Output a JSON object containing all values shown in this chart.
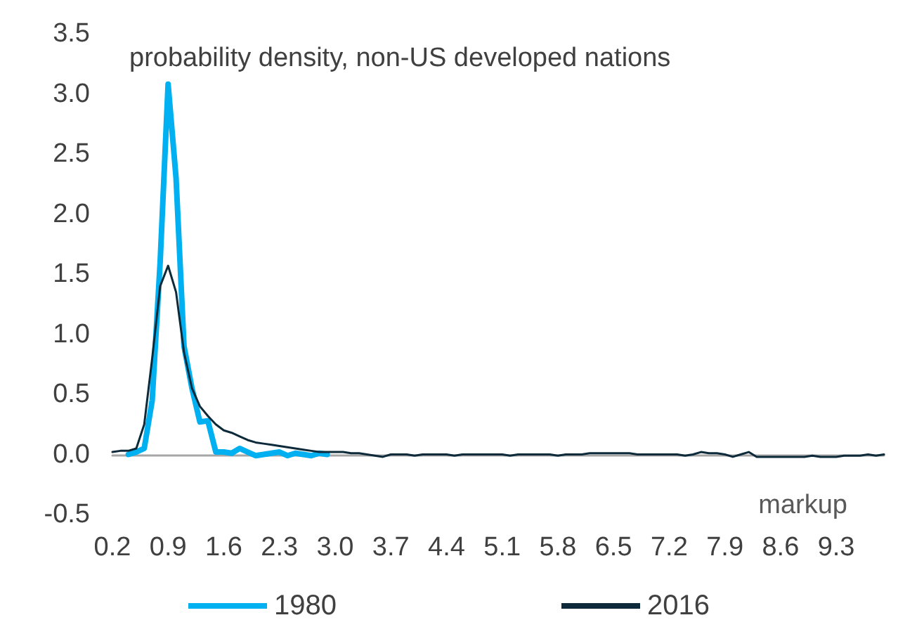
{
  "chart_data": {
    "type": "line",
    "ylabel": "probability density, non-US developed nations",
    "xlabel": "markup",
    "categories": [
      "0.2",
      null,
      null,
      null,
      null,
      null,
      null,
      "0.9",
      null,
      null,
      null,
      null,
      null,
      null,
      "1.6",
      null,
      null,
      null,
      null,
      null,
      null,
      "2.3",
      null,
      null,
      null,
      null,
      null,
      null,
      "3.0",
      null,
      null,
      null,
      null,
      null,
      null,
      "3.7",
      null,
      null,
      null,
      null,
      null,
      null,
      "4.4",
      null,
      null,
      null,
      null,
      null,
      null,
      "5.1",
      null,
      null,
      null,
      null,
      null,
      null,
      "5.8",
      null,
      null,
      null,
      null,
      null,
      null,
      "6.5",
      null,
      null,
      null,
      null,
      null,
      null,
      "7.2",
      null,
      null,
      null,
      null,
      null,
      null,
      "7.9",
      null,
      null,
      null,
      null,
      null,
      null,
      "8.6",
      null,
      null,
      null,
      null,
      null,
      null,
      "9.3",
      null,
      null,
      null,
      null,
      null,
      null
    ],
    "series": [
      {
        "name": "1980",
        "color": "#00b0f0",
        "values": [
          null,
          null,
          0.0,
          0.02,
          0.05,
          0.45,
          1.6,
          3.08,
          2.3,
          0.9,
          0.55,
          0.27,
          0.28,
          0.02,
          0.02,
          0.01,
          0.05,
          0.02,
          -0.01,
          0.0,
          0.01,
          0.02,
          -0.01,
          0.01,
          0.0,
          -0.01,
          0.01,
          0.0,
          null,
          null,
          null,
          null,
          null,
          null,
          null,
          null,
          null,
          null,
          null,
          null,
          null,
          null,
          null,
          null,
          null,
          null,
          null,
          null,
          null,
          null,
          null,
          null,
          null,
          null,
          null,
          null,
          null,
          null,
          null,
          null,
          null,
          null,
          null,
          null,
          null,
          null,
          null,
          null,
          null,
          null,
          null,
          null,
          null,
          null,
          null,
          null,
          null,
          null,
          null,
          null,
          null,
          null,
          null,
          null,
          null,
          null,
          null,
          null,
          null,
          null,
          null,
          null,
          null,
          null,
          null,
          null,
          null,
          null
        ]
      },
      {
        "name": "2016",
        "color": "#0d2a3a",
        "values": [
          0.02,
          0.03,
          0.03,
          0.05,
          0.25,
          0.8,
          1.4,
          1.57,
          1.35,
          0.85,
          0.55,
          0.4,
          0.32,
          0.25,
          0.2,
          0.18,
          0.15,
          0.12,
          0.1,
          0.09,
          0.08,
          0.07,
          0.06,
          0.05,
          0.04,
          0.03,
          0.02,
          0.02,
          0.02,
          0.02,
          0.01,
          0.01,
          0.0,
          -0.01,
          -0.02,
          0.0,
          0.0,
          0.0,
          -0.01,
          0.0,
          0.0,
          0.0,
          0.0,
          -0.01,
          0.0,
          0.0,
          0.0,
          0.0,
          0.0,
          0.0,
          -0.01,
          0.0,
          0.0,
          0.0,
          0.0,
          0.0,
          -0.01,
          0.0,
          0.0,
          0.0,
          0.01,
          0.01,
          0.01,
          0.01,
          0.01,
          0.01,
          0.0,
          0.0,
          0.0,
          0.0,
          0.0,
          0.0,
          -0.01,
          0.0,
          0.02,
          0.01,
          0.01,
          0.0,
          -0.02,
          0.0,
          0.02,
          -0.02,
          -0.02,
          -0.02,
          -0.02,
          -0.02,
          -0.02,
          -0.02,
          -0.01,
          -0.02,
          -0.02,
          -0.02,
          -0.01,
          -0.01,
          -0.01,
          0.0,
          -0.01,
          0.0
        ]
      }
    ],
    "ylim": [
      -0.5,
      3.5
    ],
    "yticks": [
      {
        "value": -0.5,
        "label": "-0.5"
      },
      {
        "value": 0,
        "label": "0.0"
      },
      {
        "value": 0.5,
        "label": "0.5"
      },
      {
        "value": 1,
        "label": "1.0"
      },
      {
        "value": 1.5,
        "label": "1.5"
      },
      {
        "value": 2,
        "label": "2.0"
      },
      {
        "value": 2.5,
        "label": "2.5"
      },
      {
        "value": 3,
        "label": "3.0"
      },
      {
        "value": 3.5,
        "label": "3.5"
      }
    ],
    "legend": "bottom",
    "line_style": "solid"
  }
}
